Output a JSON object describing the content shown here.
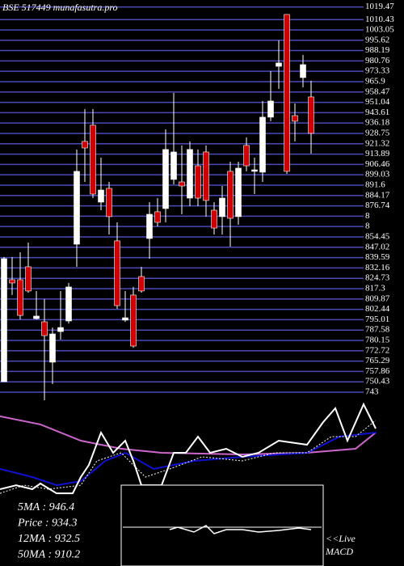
{
  "chart_data": [
    {
      "type": "candlestick",
      "title": "BSE 517449 munafasutra.pro",
      "up_color": "#ffffff",
      "down_color": "#cc0000",
      "grid": true,
      "grid_color": "#4a4ab8",
      "xlim": [
        -0.5,
        49.5
      ],
      "ylim": [
        737.2,
        1024.5
      ],
      "yticks": [
        743,
        750.43,
        757.86,
        765.29,
        772.72,
        780.15,
        787.58,
        795.01,
        802.44,
        809.87,
        817.3,
        824.73,
        832.16,
        839.59,
        847.02,
        854.45,
        {
          "value": 861.88,
          "label": "8"
        },
        {
          "value": 869.31,
          "label": "8"
        },
        876.74,
        884.17,
        891.6,
        899.03,
        906.46,
        913.89,
        921.32,
        928.75,
        936.18,
        943.61,
        951.04,
        958.47,
        965.9,
        973.33,
        980.76,
        988.19,
        995.62,
        1003.05,
        1010.43,
        1019.47
      ],
      "open": [
        750.5,
        823.7,
        823.7,
        833.0,
        795.8,
        793.5,
        764.5,
        786.5,
        794.1,
        849.2,
        923.0,
        934.6,
        879.4,
        889.3,
        851.6,
        794.7,
        812.7,
        826.0,
        853.3,
        872.5,
        874.8,
        895.7,
        893.9,
        882.3,
        905.5,
        915.4,
        873.6,
        869.0,
        901.5,
        869.0,
        920.1,
        901.5,
        900.9,
        940.4,
        976.9,
        1014.1,
        941.5,
        968.8,
        954.9
      ],
      "high": [
        840.0,
        840.0,
        843.4,
        850.4,
        815.6,
        809.8,
        789.4,
        815.6,
        821.4,
        917.2,
        946.2,
        946.2,
        911.3,
        893.9,
        864.9,
        815.6,
        818.5,
        833.0,
        879.4,
        882.3,
        931.7,
        957.8,
        920.1,
        923.0,
        917.2,
        920.1,
        879.4,
        891.0,
        908.4,
        908.4,
        925.9,
        911.3,
        952.0,
        973.5,
        995.5,
        1014.1,
        950.2,
        985.1,
        966.5
      ],
      "low": [
        750.5,
        812.7,
        795.2,
        814.4,
        795.2,
        737.2,
        748.8,
        780.7,
        792.3,
        833.0,
        893.9,
        882.3,
        873.6,
        856.2,
        802.8,
        793.5,
        774.9,
        814.4,
        838.8,
        862.0,
        864.9,
        892.2,
        870.7,
        876.5,
        876.5,
        869.0,
        856.2,
        856.2,
        847.5,
        863.2,
        901.5,
        885.2,
        893.9,
        937.5,
        960.7,
        899.7,
        923.0,
        961.8,
        914.3
      ],
      "close": [
        838.8,
        821.4,
        798.1,
        815.6,
        797.6,
        783.6,
        784.8,
        789.4,
        818.5,
        901.5,
        918.3,
        885.2,
        888.1,
        869.0,
        805.1,
        796.4,
        776.1,
        815.6,
        870.7,
        864.9,
        917.2,
        915.4,
        891.0,
        917.2,
        882.3,
        880.6,
        860.8,
        882.3,
        867.8,
        903.8,
        905.5,
        902.6,
        940.4,
        952.0,
        979.3,
        901.5,
        937.5,
        978.1,
        928.8
      ],
      "labels": [
        "5MA : 946.4",
        "Price : 934.3",
        "12MA : 932.5",
        "50MA : 910.2"
      ]
    },
    {
      "type": "line",
      "xlim": [
        -0.5,
        49.5
      ],
      "ylim": [
        -73.9,
        102.6
      ],
      "series": [
        {
          "color": "#cc66cc",
          "dashed": false,
          "x": [
            -0.5,
            4.5,
            9.5,
            14.5,
            19.5,
            29.5,
            37.5,
            43.5,
            46
          ],
          "values": [
            87,
            78.3,
            60.9,
            52.2,
            47.8,
            46.1,
            47.8,
            52.2,
            69.6
          ]
        },
        {
          "color": "#1010d0",
          "dashed": false,
          "x": [
            -0.5,
            3.5,
            6.5,
            9.5,
            12.5,
            15,
            18.5,
            23.5,
            29.5,
            37.5,
            41.5,
            46
          ],
          "values": [
            30.4,
            21.7,
            13,
            17.4,
            39.1,
            47.8,
            30.4,
            39.1,
            43.5,
            47.8,
            65.2,
            69.6
          ]
        },
        {
          "color": "#ffffff",
          "dashed": true,
          "x": [
            -0.5,
            2.5,
            5.5,
            9.5,
            11.5,
            14.5,
            17.5,
            20.5,
            24.5,
            29.5,
            33.5,
            37.5,
            40.5,
            43.5,
            46
          ],
          "values": [
            4.3,
            13,
            8.7,
            13,
            39.1,
            47.8,
            21.7,
            30.4,
            43.5,
            39.1,
            47.8,
            47.8,
            65.2,
            65.2,
            82.6
          ]
        },
        {
          "color": "#ffffff",
          "dashed": false,
          "x": [
            -0.5,
            1.5,
            3.5,
            4.5,
            6.5,
            8.5,
            9.5,
            10.5,
            12,
            13.5,
            15,
            16,
            17,
            19.5,
            21,
            22.5,
            24,
            25.5,
            27.5,
            29.5,
            31.5,
            34,
            37.5,
            39.5,
            41,
            42.5,
            44.5,
            46
          ],
          "values": [
            8.7,
            13,
            8.7,
            14.8,
            4.3,
            4.3,
            21.7,
            34.8,
            69.6,
            47.8,
            60.9,
            39.1,
            13,
            13,
            47.8,
            47.8,
            65.2,
            47.8,
            52.2,
            43.5,
            47.8,
            60.9,
            56.5,
            80.9,
            95.7,
            60.9,
            100,
            73.9
          ]
        }
      ]
    },
    {
      "type": "macd",
      "xlim": [
        -0.5,
        49.5
      ],
      "ylim": [
        -50,
        50
      ],
      "color": "#ffffff",
      "labels": [
        "<<Live",
        "MACD"
      ],
      "x": [
        20.5,
        21.5,
        23.5,
        25,
        26,
        27.5,
        29.5,
        31.5,
        34,
        36.5,
        38
      ],
      "values": [
        -5,
        -2,
        -8,
        0,
        -10,
        -5,
        -5,
        -8,
        -6,
        -3,
        -5
      ]
    }
  ]
}
